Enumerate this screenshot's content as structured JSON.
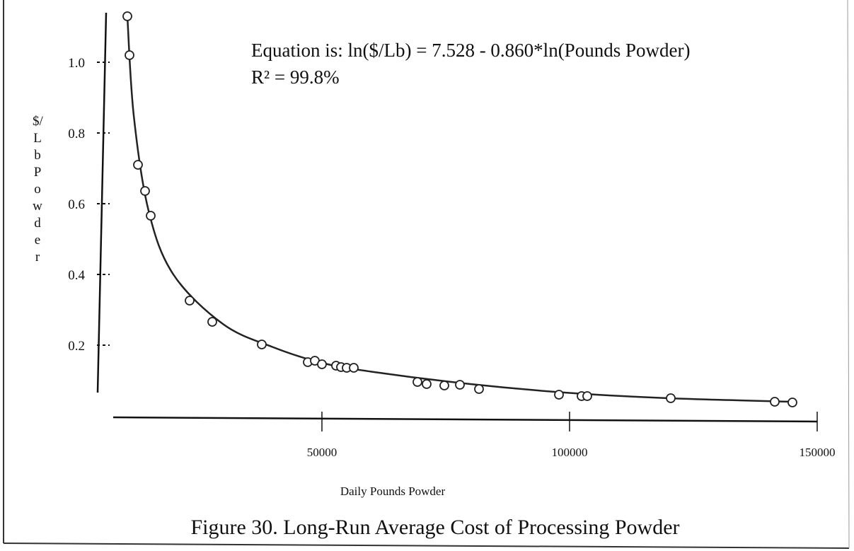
{
  "chart_data": {
    "type": "scatter",
    "title": "Figure 30.  Long-Run Average Cost of Processing Powder",
    "xlabel": "Daily Pounds Powder",
    "ylabel": "$/Lb Powder",
    "annotations": [
      "Equation is: ln($/Lb) = 7.528 - 0.860*ln(Pounds Powder)",
      "R² = 99.8%"
    ],
    "x": [
      10714,
      11143,
      12857,
      14286,
      15429,
      23286,
      27857,
      37857,
      47143,
      48571,
      50000,
      52857,
      53857,
      55000,
      56429,
      69286,
      71143,
      74714,
      77857,
      81714,
      97857,
      102429,
      103571,
      120429,
      141429,
      145000
    ],
    "values": [
      1.13,
      1.02,
      0.71,
      0.636,
      0.566,
      0.326,
      0.266,
      0.202,
      0.152,
      0.156,
      0.146,
      0.142,
      0.138,
      0.136,
      0.136,
      0.096,
      0.09,
      0.086,
      0.088,
      0.076,
      0.06,
      0.056,
      0.056,
      0.05,
      0.04,
      0.038
    ],
    "fit_x": [
      10714,
      12000,
      15000,
      20000,
      30000,
      40000,
      50000,
      60000,
      80000,
      100000,
      120000,
      145000
    ],
    "fit_values": [
      1.13,
      0.85,
      0.58,
      0.4,
      0.26,
      0.195,
      0.15,
      0.125,
      0.09,
      0.065,
      0.05,
      0.04
    ],
    "color": "#222222",
    "xlim": [
      0,
      155000
    ],
    "ylim": [
      0,
      1.15
    ],
    "xticks": [
      50000,
      100000,
      150000
    ],
    "yticks": [
      0.2,
      0.4,
      0.6,
      0.8,
      {
        "value": 1,
        "label": "1.0"
      }
    ]
  }
}
